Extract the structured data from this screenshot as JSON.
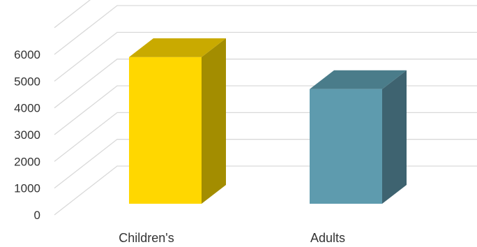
{
  "chart_data": {
    "type": "bar",
    "categories": [
      "Children's",
      "Adults"
    ],
    "values": [
      5500,
      4300
    ],
    "ylim": [
      0,
      7000
    ],
    "yticks": [
      0,
      1000,
      2000,
      3000,
      4000,
      5000,
      6000
    ],
    "grid": true,
    "style": "3d-column",
    "colors": {
      "Children's": {
        "front": "#FFD700",
        "side": "#A38D00",
        "top": "#C9AA00"
      },
      "Adults": {
        "front": "#5E9BAE",
        "side": "#3E6370",
        "top": "#4A7C8A"
      }
    }
  }
}
